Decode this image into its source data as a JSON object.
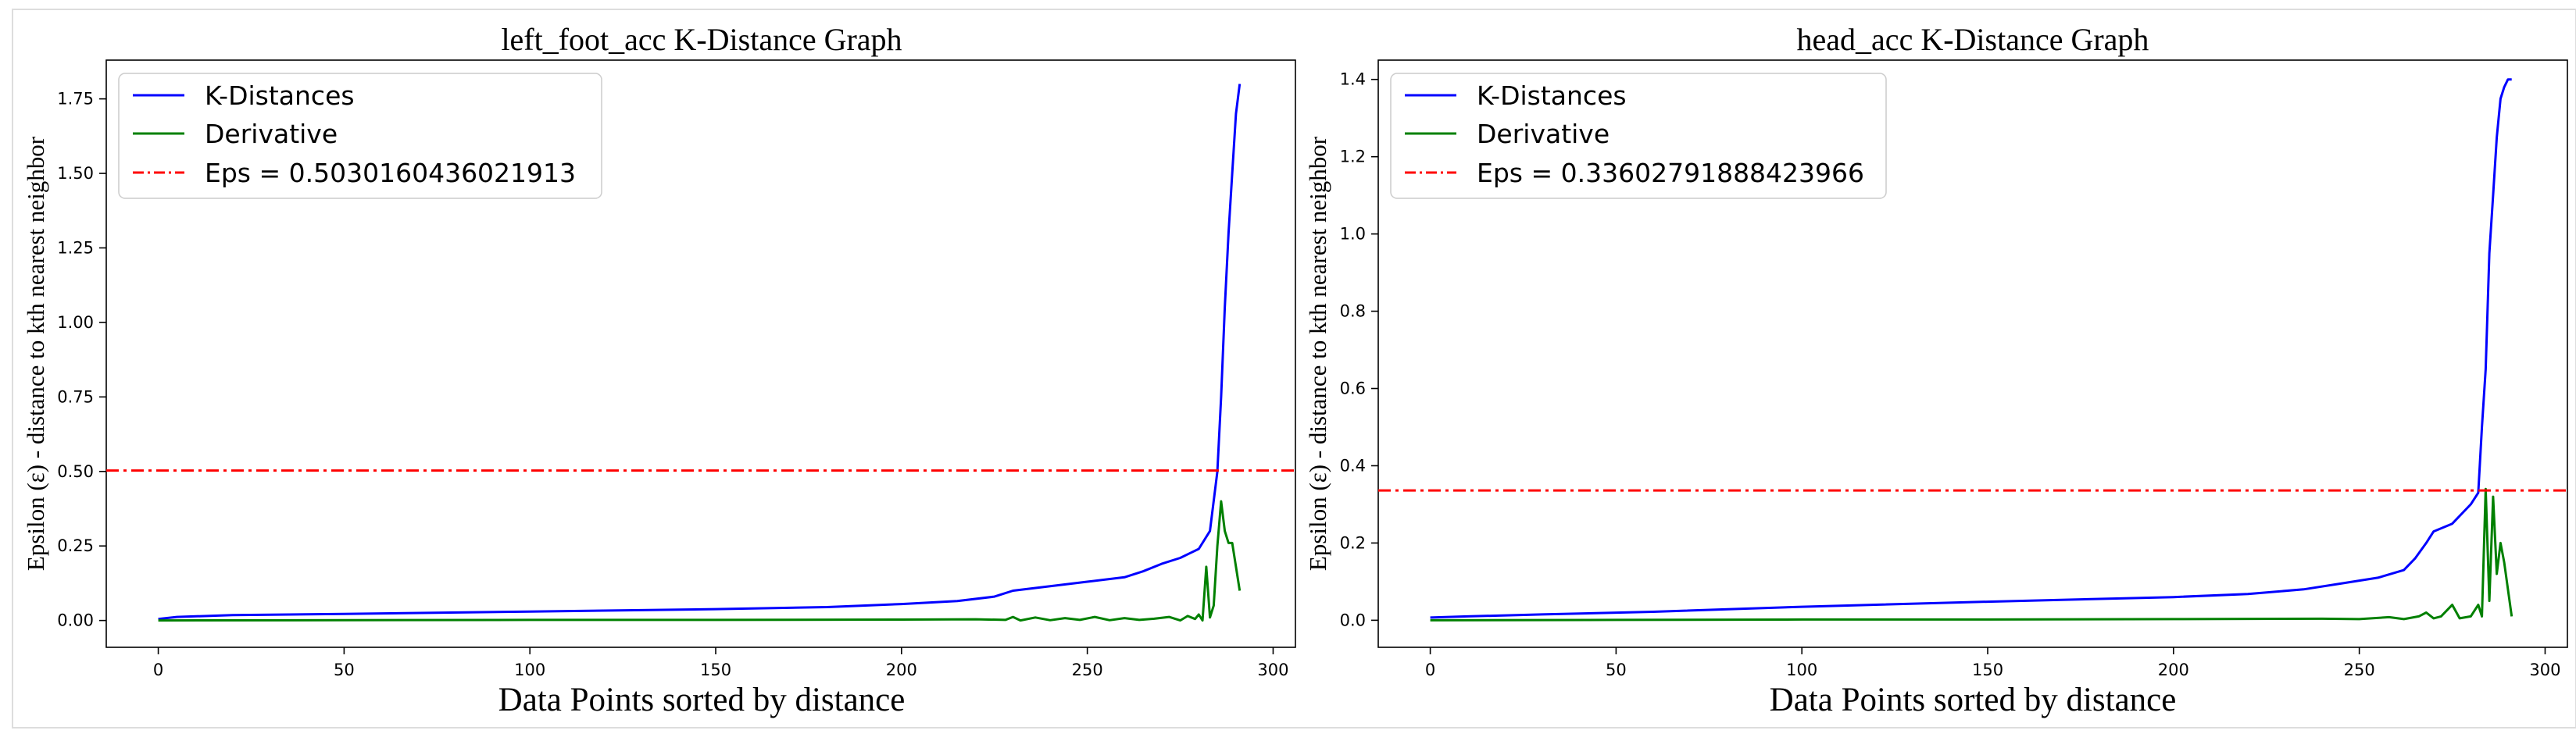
{
  "chart_data": [
    {
      "type": "line",
      "title": "left_foot_acc K-Distance Graph",
      "xlabel": "Data Points sorted by distance",
      "ylabel": "Epsilon (ε) - distance to kth nearest neighbor",
      "xlim": [
        -14,
        306
      ],
      "ylim": [
        -0.09,
        1.88
      ],
      "xticks": [
        0,
        50,
        100,
        150,
        200,
        250,
        300
      ],
      "yticks": [
        0.0,
        0.25,
        0.5,
        0.75,
        1.0,
        1.25,
        1.5,
        1.75
      ],
      "ytick_labels": [
        "0.00",
        "0.25",
        "0.50",
        "0.75",
        "1.00",
        "1.25",
        "1.50",
        "1.75"
      ],
      "legend_position": "upper-left",
      "series": [
        {
          "name": "K-Distances",
          "color": "#0000ff",
          "style": "solid",
          "x": [
            0,
            5,
            20,
            50,
            100,
            150,
            180,
            200,
            215,
            225,
            230,
            240,
            250,
            260,
            265,
            270,
            275,
            280,
            283,
            285,
            286,
            287,
            288,
            289,
            290,
            291
          ],
          "y": [
            0.005,
            0.012,
            0.018,
            0.022,
            0.03,
            0.038,
            0.045,
            0.055,
            0.065,
            0.08,
            0.1,
            0.115,
            0.13,
            0.145,
            0.165,
            0.19,
            0.21,
            0.24,
            0.3,
            0.5,
            0.75,
            1.05,
            1.3,
            1.5,
            1.7,
            1.8
          ]
        },
        {
          "name": "Derivative",
          "color": "#008000",
          "style": "solid",
          "x": [
            0,
            50,
            100,
            150,
            200,
            220,
            228,
            230,
            232,
            236,
            240,
            244,
            248,
            252,
            256,
            260,
            264,
            268,
            272,
            275,
            277,
            279,
            280,
            281,
            282,
            283,
            284,
            285,
            286,
            287,
            288,
            289,
            290,
            291
          ],
          "y": [
            0.0,
            0.001,
            0.002,
            0.002,
            0.003,
            0.004,
            0.002,
            0.012,
            0.0,
            0.01,
            0.001,
            0.008,
            0.002,
            0.012,
            0.001,
            0.008,
            0.002,
            0.006,
            0.012,
            0.0,
            0.015,
            0.005,
            0.02,
            0.0,
            0.18,
            0.01,
            0.05,
            0.25,
            0.4,
            0.3,
            0.26,
            0.26,
            0.18,
            0.1
          ]
        },
        {
          "name": "Eps = 0.5030160436021913",
          "color": "#ff0000",
          "style": "dashdot",
          "hline": 0.5030160436021913
        }
      ]
    },
    {
      "type": "line",
      "title": "head_acc K-Distance Graph",
      "xlabel": "Data Points sorted by distance",
      "ylabel": "Epsilon (ε) - distance to kth nearest neighbor",
      "xlim": [
        -14,
        306
      ],
      "ylim": [
        -0.07,
        1.45
      ],
      "xticks": [
        0,
        50,
        100,
        150,
        200,
        250,
        300
      ],
      "yticks": [
        0.0,
        0.2,
        0.4,
        0.6,
        0.8,
        1.0,
        1.2,
        1.4
      ],
      "ytick_labels": [
        "0.0",
        "0.2",
        "0.4",
        "0.6",
        "0.8",
        "1.0",
        "1.2",
        "1.4"
      ],
      "legend_position": "upper-left",
      "series": [
        {
          "name": "K-Distances",
          "color": "#0000ff",
          "style": "solid",
          "x": [
            0,
            10,
            30,
            60,
            100,
            150,
            200,
            220,
            235,
            245,
            255,
            262,
            265,
            268,
            270,
            275,
            280,
            282,
            283,
            284,
            285,
            286,
            287,
            288,
            289,
            290,
            291
          ],
          "y": [
            0.007,
            0.01,
            0.015,
            0.022,
            0.035,
            0.048,
            0.06,
            0.068,
            0.08,
            0.095,
            0.11,
            0.13,
            0.16,
            0.2,
            0.23,
            0.25,
            0.3,
            0.33,
            0.5,
            0.65,
            0.95,
            1.1,
            1.25,
            1.35,
            1.38,
            1.4,
            1.4
          ]
        },
        {
          "name": "Derivative",
          "color": "#008000",
          "style": "solid",
          "x": [
            0,
            50,
            100,
            150,
            200,
            240,
            250,
            258,
            262,
            266,
            268,
            270,
            272,
            275,
            277,
            280,
            282,
            283,
            284,
            285,
            286,
            287,
            288,
            289,
            290,
            291
          ],
          "y": [
            0.0,
            0.001,
            0.002,
            0.002,
            0.003,
            0.004,
            0.003,
            0.008,
            0.003,
            0.01,
            0.02,
            0.005,
            0.01,
            0.04,
            0.005,
            0.01,
            0.04,
            0.01,
            0.34,
            0.05,
            0.32,
            0.12,
            0.2,
            0.15,
            0.08,
            0.01
          ]
        },
        {
          "name": "Eps = 0.33602791888423966",
          "color": "#ff0000",
          "style": "dashdot",
          "hline": 0.33602791888423966
        }
      ]
    }
  ]
}
